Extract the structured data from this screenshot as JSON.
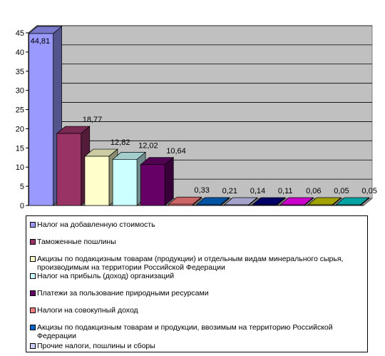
{
  "chart_data": {
    "type": "bar",
    "title": "",
    "xlabel": "",
    "ylabel": "",
    "ylim": [
      0,
      45
    ],
    "yticks": [
      "0",
      "5",
      "10",
      "15",
      "20",
      "25",
      "30",
      "35",
      "40",
      "45"
    ],
    "grid": true,
    "legend_position": "bottom",
    "values": [
      44.81,
      18.77,
      12.82,
      12.02,
      10.64,
      0.33,
      0.21,
      0.14,
      0.11,
      0.06,
      0.05,
      0.05
    ],
    "value_labels": [
      "44,81",
      "18,77",
      "12,82",
      "12,02",
      "10,64",
      "0,33",
      "0,21",
      "0,14",
      "0,11",
      "0,06",
      "0,05",
      "0,05"
    ],
    "colors": [
      "#9999ff",
      "#993366",
      "#ffffcc",
      "#ccffff",
      "#660066",
      "#ff8080",
      "#0066cc",
      "#ccccff",
      "#000080",
      "#ff00ff",
      "#cccc00",
      "#00cccc"
    ],
    "legend": [
      {
        "label": "Налог на добавленную стоимость",
        "color": "#9999ff"
      },
      {
        "label": "Таможенные пошлины",
        "color": "#993366"
      },
      {
        "label": "Акцизы по подакцизным товарам (продукции) и отдельным видам минерального сырья, производимым на территории Российской Федерации",
        "color": "#ffffcc"
      },
      {
        "label": "Налог на прибыль (доход) организаций",
        "color": "#ccffff"
      },
      {
        "label": "Платежи за пользование природными ресурсами",
        "color": "#660066"
      },
      {
        "label": "Налоги на совокупный доход",
        "color": "#ff8080"
      },
      {
        "label": "Акцизы по подакцизным товарам и продукции, ввозимым на территорию Российской Федерации",
        "color": "#0066cc"
      },
      {
        "label": "Прочие налоги, пошлины и сборы",
        "color": "#ccccff"
      }
    ]
  }
}
